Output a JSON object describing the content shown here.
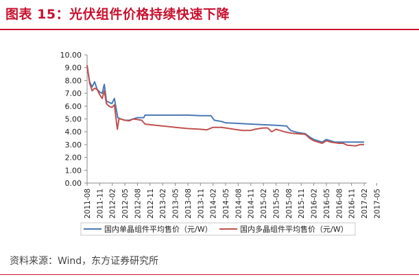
{
  "title": "图表 15：光伏组件价格持续快速下降",
  "source": "资料来源：Wind，东方证券研究所",
  "colors": {
    "accent": "#c8102e",
    "series1": "#4a78b5",
    "series2": "#c0504d"
  },
  "chart_data": {
    "type": "line",
    "title": "",
    "xlabel": "",
    "ylabel": "",
    "ylim": [
      0,
      10
    ],
    "yticks": [
      "0.00",
      "1.00",
      "2.00",
      "3.00",
      "4.00",
      "5.00",
      "6.00",
      "7.00",
      "8.00",
      "9.00",
      "10.00"
    ],
    "xticks": [
      "2011-08",
      "2011-11",
      "2012-02",
      "2012-05",
      "2012-08",
      "2012-11",
      "2013-02",
      "2013-05",
      "2013-08",
      "2013-11",
      "2014-02",
      "2014-05",
      "2014-08",
      "2014-11",
      "2015-02",
      "2015-05",
      "2015-08",
      "2015-11",
      "2016-02",
      "2016-05",
      "2016-08",
      "2016-11",
      "2017-02",
      "2017-05"
    ],
    "grid": false,
    "legend": "bottom",
    "series": [
      {
        "name": "国内单晶组件平均售价（元/W）",
        "points": [
          [
            0,
            9.1
          ],
          [
            0.6,
            7.9
          ],
          [
            1.2,
            7.5
          ],
          [
            1.8,
            7.9
          ],
          [
            2.4,
            7.3
          ],
          [
            3.0,
            7.1
          ],
          [
            3.6,
            7.0
          ],
          [
            4.1,
            7.7
          ],
          [
            4.6,
            6.4
          ],
          [
            5.2,
            6.3
          ],
          [
            5.9,
            6.2
          ],
          [
            6.5,
            6.6
          ],
          [
            7.3,
            5.1
          ],
          [
            8.0,
            5.0
          ],
          [
            9,
            4.9
          ],
          [
            10,
            4.9
          ],
          [
            11,
            5.0
          ],
          [
            12,
            5.1
          ],
          [
            13,
            5.1
          ],
          [
            13.5,
            5.1
          ],
          [
            13.8,
            5.3
          ],
          [
            15,
            5.3
          ],
          [
            18,
            5.3
          ],
          [
            21,
            5.3
          ],
          [
            24,
            5.3
          ],
          [
            27,
            5.25
          ],
          [
            29.5,
            5.25
          ],
          [
            30.3,
            4.9
          ],
          [
            32,
            4.8
          ],
          [
            33,
            4.7
          ],
          [
            36,
            4.65
          ],
          [
            39,
            4.6
          ],
          [
            42,
            4.55
          ],
          [
            45,
            4.5
          ],
          [
            47.5,
            4.45
          ],
          [
            48.5,
            4.1
          ],
          [
            50,
            3.95
          ],
          [
            52,
            3.85
          ],
          [
            53,
            3.6
          ],
          [
            54,
            3.4
          ],
          [
            55,
            3.3
          ],
          [
            56,
            3.2
          ],
          [
            57,
            3.4
          ],
          [
            58,
            3.3
          ],
          [
            59,
            3.2
          ],
          [
            62,
            3.2
          ],
          [
            64,
            3.2
          ],
          [
            66,
            3.2
          ]
        ]
      },
      {
        "name": "国内多晶组件平均售价（元/W）",
        "points": [
          [
            0,
            9.2
          ],
          [
            0.6,
            7.8
          ],
          [
            1.2,
            7.2
          ],
          [
            1.8,
            7.4
          ],
          [
            2.4,
            7.3
          ],
          [
            3.0,
            6.9
          ],
          [
            3.6,
            6.6
          ],
          [
            4.1,
            7.2
          ],
          [
            4.6,
            6.2
          ],
          [
            5.2,
            6.0
          ],
          [
            5.9,
            5.9
          ],
          [
            6.5,
            6.1
          ],
          [
            7.2,
            4.2
          ],
          [
            7.6,
            5.0
          ],
          [
            8.0,
            5.0
          ],
          [
            9,
            4.9
          ],
          [
            10,
            4.85
          ],
          [
            11,
            5.0
          ],
          [
            12,
            4.95
          ],
          [
            13,
            4.9
          ],
          [
            13.8,
            4.6
          ],
          [
            15,
            4.55
          ],
          [
            18,
            4.45
          ],
          [
            21,
            4.35
          ],
          [
            24,
            4.25
          ],
          [
            27,
            4.2
          ],
          [
            28.5,
            4.15
          ],
          [
            30,
            4.35
          ],
          [
            32,
            4.35
          ],
          [
            33,
            4.3
          ],
          [
            35,
            4.2
          ],
          [
            37,
            4.1
          ],
          [
            39,
            4.1
          ],
          [
            40,
            4.2
          ],
          [
            42,
            4.3
          ],
          [
            43,
            4.3
          ],
          [
            44,
            4.0
          ],
          [
            45,
            4.2
          ],
          [
            46,
            4.1
          ],
          [
            47,
            4.0
          ],
          [
            48.5,
            3.9
          ],
          [
            50,
            3.85
          ],
          [
            52,
            3.8
          ],
          [
            53,
            3.5
          ],
          [
            54,
            3.3
          ],
          [
            55,
            3.2
          ],
          [
            56,
            3.1
          ],
          [
            57,
            3.3
          ],
          [
            58,
            3.2
          ],
          [
            60,
            3.1
          ],
          [
            61,
            3.1
          ],
          [
            62,
            2.95
          ],
          [
            64,
            2.9
          ],
          [
            65,
            3.0
          ],
          [
            66,
            3.0
          ]
        ]
      }
    ]
  }
}
